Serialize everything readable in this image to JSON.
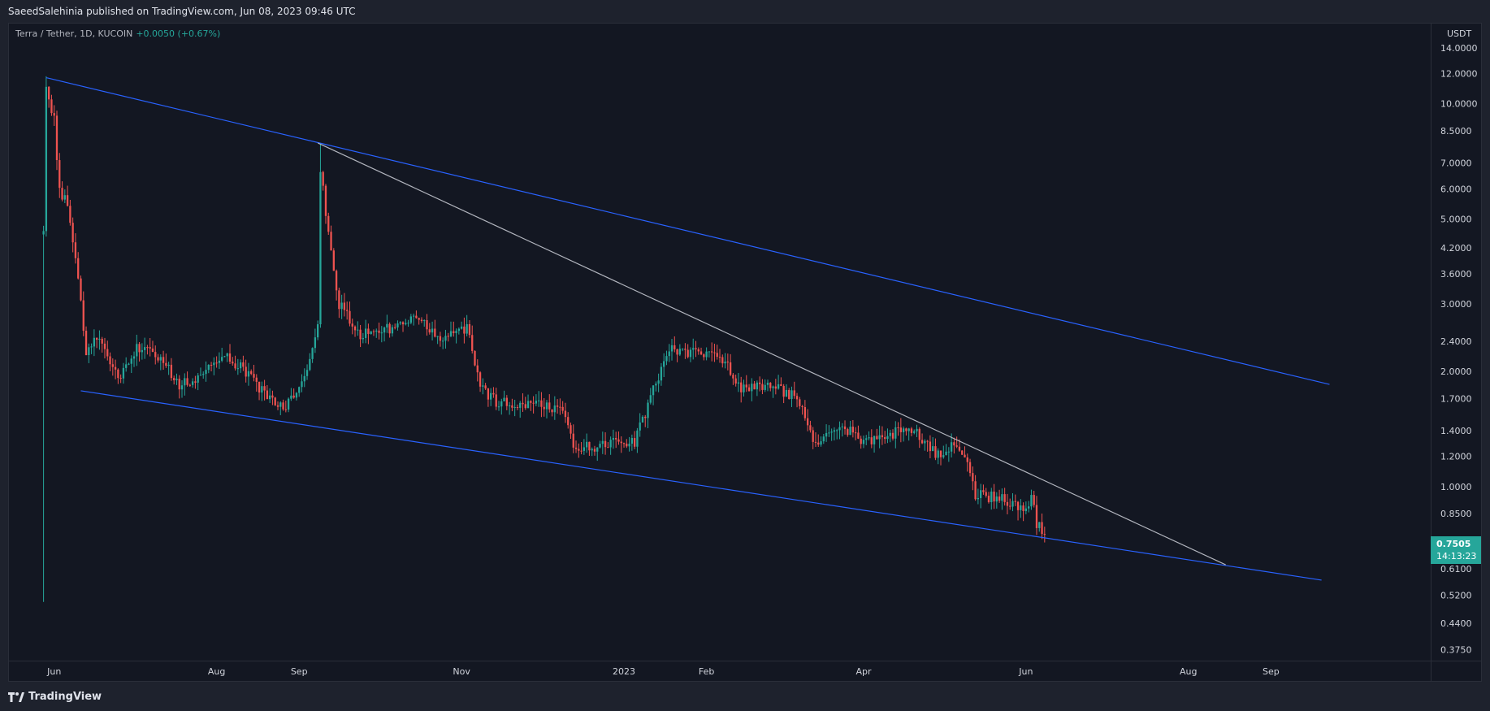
{
  "header": {
    "published": "SaeedSalehinia published on TradingView.com, Jun 08, 2023 09:46 UTC"
  },
  "legend": {
    "symbol": "Terra / Tether, 1D, KUCOIN",
    "change": "+0.0050 (+0.67%)"
  },
  "price_axis": {
    "unit": "USDT"
  },
  "last_price": {
    "value": "0.7505",
    "countdown": "14:13:23"
  },
  "footer": {
    "brand": "TradingView"
  },
  "colors": {
    "up": "#26a69a",
    "down": "#ef5350",
    "trendline": "#2962ff",
    "diagonal": "#b2b5be",
    "background": "#131722"
  },
  "chart_data": {
    "type": "candlestick",
    "scale": "log",
    "ylim": [
      0.3513,
      16.2
    ],
    "xlim": [
      "2022-05-15",
      "2023-10-31"
    ],
    "y_ticks": [
      "14.0000",
      "12.0000",
      "10.0000",
      "8.5000",
      "7.0000",
      "6.0000",
      "5.0000",
      "4.2000",
      "3.6000",
      "3.0000",
      "2.4000",
      "2.0000",
      "1.7000",
      "1.4000",
      "1.2000",
      "1.0000",
      "0.8500",
      "0.6100",
      "0.5200",
      "0.4400",
      "0.3750"
    ],
    "y_tick_values": [
      14,
      12,
      10,
      8.5,
      7,
      6,
      5,
      4.2,
      3.6,
      3,
      2.4,
      2,
      1.7,
      1.4,
      1.2,
      1,
      0.85,
      0.61,
      0.52,
      0.44,
      0.375
    ],
    "x_ticks": [
      {
        "label": "Jun",
        "date": "2022-06-01"
      },
      {
        "label": "Aug",
        "date": "2022-08-01"
      },
      {
        "label": "Sep",
        "date": "2022-09-01"
      },
      {
        "label": "Nov",
        "date": "2022-11-01"
      },
      {
        "label": "2023",
        "date": "2023-01-01"
      },
      {
        "label": "Feb",
        "date": "2023-02-01"
      },
      {
        "label": "Apr",
        "date": "2023-04-01"
      },
      {
        "label": "Jun",
        "date": "2023-06-01"
      },
      {
        "label": "Aug",
        "date": "2023-08-01"
      },
      {
        "label": "Sep",
        "date": "2023-09-01"
      }
    ],
    "anchors": [
      [
        "2022-05-28",
        4.6
      ],
      [
        "2022-05-29",
        11.0
      ],
      [
        "2022-06-01",
        9.0
      ],
      [
        "2022-06-03",
        6.0
      ],
      [
        "2022-06-06",
        5.4
      ],
      [
        "2022-06-10",
        3.6
      ],
      [
        "2022-06-13",
        2.2
      ],
      [
        "2022-06-18",
        2.5
      ],
      [
        "2022-06-25",
        1.9
      ],
      [
        "2022-07-02",
        2.3
      ],
      [
        "2022-07-10",
        2.2
      ],
      [
        "2022-07-18",
        1.85
      ],
      [
        "2022-07-26",
        1.95
      ],
      [
        "2022-08-03",
        2.2
      ],
      [
        "2022-08-12",
        2.0
      ],
      [
        "2022-08-19",
        1.75
      ],
      [
        "2022-08-27",
        1.6
      ],
      [
        "2022-09-04",
        2.0
      ],
      [
        "2022-09-08",
        2.7
      ],
      [
        "2022-09-09",
        6.8
      ],
      [
        "2022-09-12",
        4.5
      ],
      [
        "2022-09-16",
        3.0
      ],
      [
        "2022-09-24",
        2.5
      ],
      [
        "2022-10-05",
        2.6
      ],
      [
        "2022-10-15",
        2.75
      ],
      [
        "2022-10-25",
        2.4
      ],
      [
        "2022-11-03",
        2.6
      ],
      [
        "2022-11-08",
        1.8
      ],
      [
        "2022-11-15",
        1.65
      ],
      [
        "2022-11-28",
        1.65
      ],
      [
        "2022-12-08",
        1.6
      ],
      [
        "2022-12-14",
        1.25
      ],
      [
        "2022-12-26",
        1.3
      ],
      [
        "2023-01-05",
        1.3
      ],
      [
        "2023-01-12",
        1.8
      ],
      [
        "2023-01-19",
        2.3
      ],
      [
        "2023-01-26",
        2.25
      ],
      [
        "2023-02-07",
        2.15
      ],
      [
        "2023-02-14",
        1.8
      ],
      [
        "2023-02-24",
        1.85
      ],
      [
        "2023-03-07",
        1.7
      ],
      [
        "2023-03-14",
        1.3
      ],
      [
        "2023-03-23",
        1.45
      ],
      [
        "2023-04-02",
        1.3
      ],
      [
        "2023-04-14",
        1.4
      ],
      [
        "2023-04-20",
        1.42
      ],
      [
        "2023-04-28",
        1.22
      ],
      [
        "2023-05-05",
        1.28
      ],
      [
        "2023-05-10",
        1.18
      ],
      [
        "2023-05-13",
        0.95
      ],
      [
        "2023-05-24",
        0.93
      ],
      [
        "2023-06-01",
        0.85
      ],
      [
        "2023-06-03",
        0.94
      ],
      [
        "2023-06-05",
        0.8
      ],
      [
        "2023-06-08",
        0.75
      ]
    ],
    "extreme_wicks": [
      {
        "date": "2022-05-28",
        "high": 4.8,
        "low": 0.5
      },
      {
        "date": "2022-05-29",
        "high": 11.8,
        "low": 4.5
      },
      {
        "date": "2022-09-09",
        "high": 7.9,
        "low": 2.6
      }
    ],
    "trendlines": [
      {
        "name": "upper",
        "color": "#2962ff",
        "points": [
          [
            "2022-05-29",
            11.7
          ],
          [
            "2023-09-23",
            1.85
          ]
        ]
      },
      {
        "name": "lower",
        "color": "#2962ff",
        "points": [
          [
            "2022-06-11",
            1.78
          ],
          [
            "2023-09-20",
            0.57
          ]
        ]
      },
      {
        "name": "diagonal",
        "color": "#b2b5be",
        "points": [
          [
            "2022-09-08",
            7.9
          ],
          [
            "2023-08-15",
            0.625
          ]
        ]
      }
    ]
  }
}
